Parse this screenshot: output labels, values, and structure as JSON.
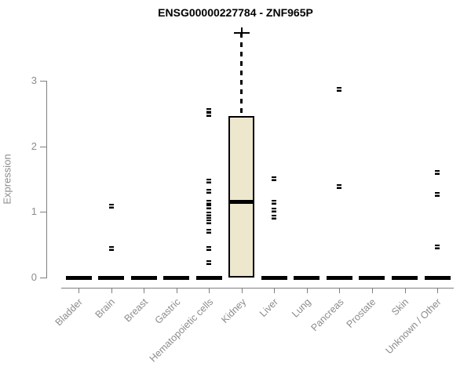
{
  "chart_data": {
    "type": "boxplot",
    "title": "ENSG00000227784 - ZNF965P",
    "ylabel": "Expression",
    "xlabel": "",
    "ylim": [
      0,
      3.8
    ],
    "yticks": [
      0,
      1,
      2,
      3
    ],
    "grid": false,
    "legend": "none",
    "categories": [
      "Bladder",
      "Brain",
      "Breast",
      "Gastric",
      "Hematopoietic cells",
      "Kidney",
      "Liver",
      "Lung",
      "Pancreas",
      "Prostate",
      "Skin",
      "Unknown / Other"
    ],
    "boxes": [
      {
        "category": "Bladder",
        "q1": 0,
        "median": 0,
        "q3": 0,
        "whisker_low": 0,
        "whisker_high": 0,
        "points": []
      },
      {
        "category": "Brain",
        "q1": 0,
        "median": 0,
        "q3": 0,
        "whisker_low": 0,
        "whisker_high": 0,
        "points": [
          1.09,
          0.44
        ]
      },
      {
        "category": "Breast",
        "q1": 0,
        "median": 0,
        "q3": 0,
        "whisker_low": 0,
        "whisker_high": 0,
        "points": []
      },
      {
        "category": "Gastric",
        "q1": 0,
        "median": 0,
        "q3": 0,
        "whisker_low": 0,
        "whisker_high": 0,
        "points": []
      },
      {
        "category": "Hematopoietic cells",
        "q1": 0,
        "median": 0,
        "q3": 0,
        "whisker_low": 0,
        "whisker_high": 0,
        "points": [
          2.55,
          2.49,
          1.47,
          1.32,
          1.15,
          1.08,
          0.97,
          0.88,
          0.85,
          0.71,
          0.44,
          0.23
        ]
      },
      {
        "category": "Kidney",
        "q1": 0,
        "median": 1.15,
        "q3": 2.46,
        "whisker_low": 0,
        "whisker_high": 3.73,
        "points": []
      },
      {
        "category": "Liver",
        "q1": 0,
        "median": 0,
        "q3": 0,
        "whisker_low": 0,
        "whisker_high": 0,
        "points": [
          1.5,
          1.15,
          1.03,
          0.92
        ]
      },
      {
        "category": "Lung",
        "q1": 0,
        "median": 0,
        "q3": 0,
        "whisker_low": 0,
        "whisker_high": 0,
        "points": []
      },
      {
        "category": "Pancreas",
        "q1": 0,
        "median": 0,
        "q3": 0,
        "whisker_low": 0,
        "whisker_high": 0,
        "points": [
          2.87,
          1.39
        ]
      },
      {
        "category": "Prostate",
        "q1": 0,
        "median": 0,
        "q3": 0,
        "whisker_low": 0,
        "whisker_high": 0,
        "points": []
      },
      {
        "category": "Skin",
        "q1": 0,
        "median": 0,
        "q3": 0,
        "whisker_low": 0,
        "whisker_high": 0,
        "points": []
      },
      {
        "category": "Unknown / Other",
        "q1": 0,
        "median": 0,
        "q3": 0,
        "whisker_low": 0,
        "whisker_high": 0,
        "points": [
          1.6,
          1.27,
          0.46
        ]
      }
    ],
    "colors": {
      "box_fill": "#EDE7CE",
      "box_border": "#000000",
      "median": "#000000",
      "point": "#000000",
      "axis": "#7f7f7f",
      "tick_label": "#8c8c8c",
      "title": "#000000",
      "background": "#ffffff"
    }
  }
}
